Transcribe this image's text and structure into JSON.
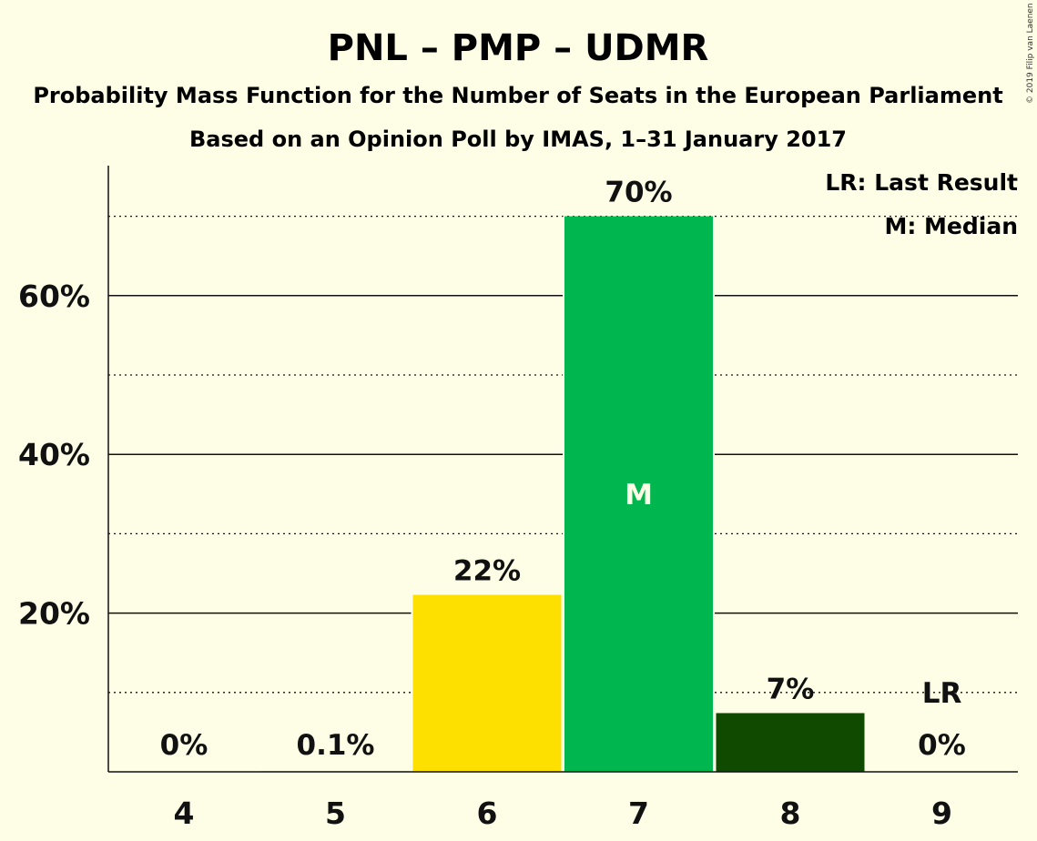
{
  "header": {
    "title": "PNL – PMP – UDMR",
    "subtitle1": "Probability Mass Function for the Number of Seats in the European Parliament",
    "subtitle2": "Based on an Opinion Poll by IMAS, 1–31 January 2017",
    "copyright": "© 2019 Filip van Laenen"
  },
  "legend": {
    "last_result": "LR: Last Result",
    "median": "M: Median"
  },
  "chart_data": {
    "type": "bar",
    "categories": [
      "4",
      "5",
      "6",
      "7",
      "8",
      "9"
    ],
    "values": [
      0,
      0.1,
      22.3,
      70,
      7.4,
      0
    ],
    "labels": [
      "0%",
      "0.1%",
      "22%",
      "70%",
      "7%",
      "0%"
    ],
    "colors": [
      "#fee000",
      "#fee000",
      "#fee000",
      "#00b74f",
      "#0f4a00",
      "#0f4a00"
    ],
    "ylim": [
      0,
      76
    ],
    "yticks": [
      20,
      40,
      60
    ],
    "ytick_labels": [
      "20%",
      "40%",
      "60%"
    ],
    "minor_gridlines": [
      10,
      30,
      50,
      70
    ],
    "median_category": "7",
    "median_marker": "M",
    "last_result_category": "9",
    "last_result_marker": "LR",
    "grid": true,
    "legend_position": "top-right"
  }
}
